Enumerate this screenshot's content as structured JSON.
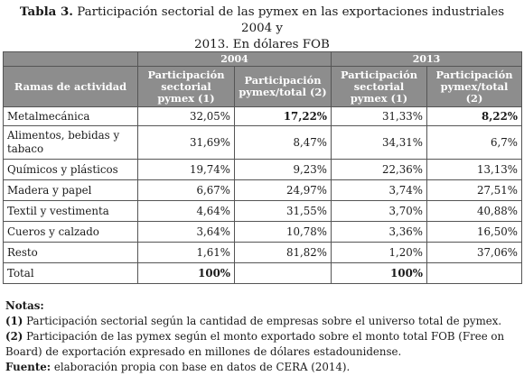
{
  "title": {
    "label": "Tabla 3.",
    "text_line1": "Participación sectorial de las pymex en las exportaciones industriales 2004 y",
    "text_line2": "2013. En dólares FOB"
  },
  "table": {
    "year_headers": [
      "2004",
      "2013"
    ],
    "row_header": "Ramas de actividad",
    "col_headers": [
      [
        "Participación",
        "sectorial pymex (1)"
      ],
      [
        "Participación",
        "pymex/total (2)"
      ],
      [
        "Participación",
        "sectorial pymex (1)"
      ],
      [
        "Participación",
        "pymex/total (2)"
      ]
    ],
    "rows": [
      {
        "name": "Metalmecánica",
        "v1": "32,05%",
        "v2": "17,22%",
        "v3": "31,33%",
        "v4": "8,22%"
      },
      {
        "name_line1": "Alimentos, bebidas y",
        "name_line2": "tabaco",
        "v1": "31,69%",
        "v2": "8,47%",
        "v3": "34,31%",
        "v4": "6,7%"
      },
      {
        "name": "Químicos y plásticos",
        "v1": "19,74%",
        "v2": "9,23%",
        "v3": "22,36%",
        "v4": "13,13%"
      },
      {
        "name": "Madera y papel",
        "v1": "6,67%",
        "v2": "24,97%",
        "v3": "3,74%",
        "v4": "27,51%"
      },
      {
        "name": "Textil y vestimenta",
        "v1": "4,64%",
        "v2": "31,55%",
        "v3": "3,70%",
        "v4": "40,88%"
      },
      {
        "name": "Cueros y calzado",
        "v1": "3,64%",
        "v2": "10,78%",
        "v3": "3,36%",
        "v4": "16,50%"
      },
      {
        "name": "Resto",
        "v1": "1,61%",
        "v2": "81,82%",
        "v3": "1,20%",
        "v4": "37,06%"
      },
      {
        "name": "Total",
        "v1": "100%",
        "v2": "",
        "v3": "100%",
        "v4": ""
      }
    ]
  },
  "notes": {
    "heading": "Notas:",
    "n1_marker": "(1)",
    "n1_text": " Participación sectorial según la cantidad de empresas sobre el universo total de pymex.",
    "n2_marker": "(2)",
    "n2_text_line1": " Participación de las pymex según el monto exportado sobre el monto total FOB (Free on",
    "n2_text_line2": "Board) de exportación expresado en millones de dólares estadounidense.",
    "source_label": "Fuente:",
    "source_text": " elaboración propia con base en datos de CERA (2014)."
  }
}
